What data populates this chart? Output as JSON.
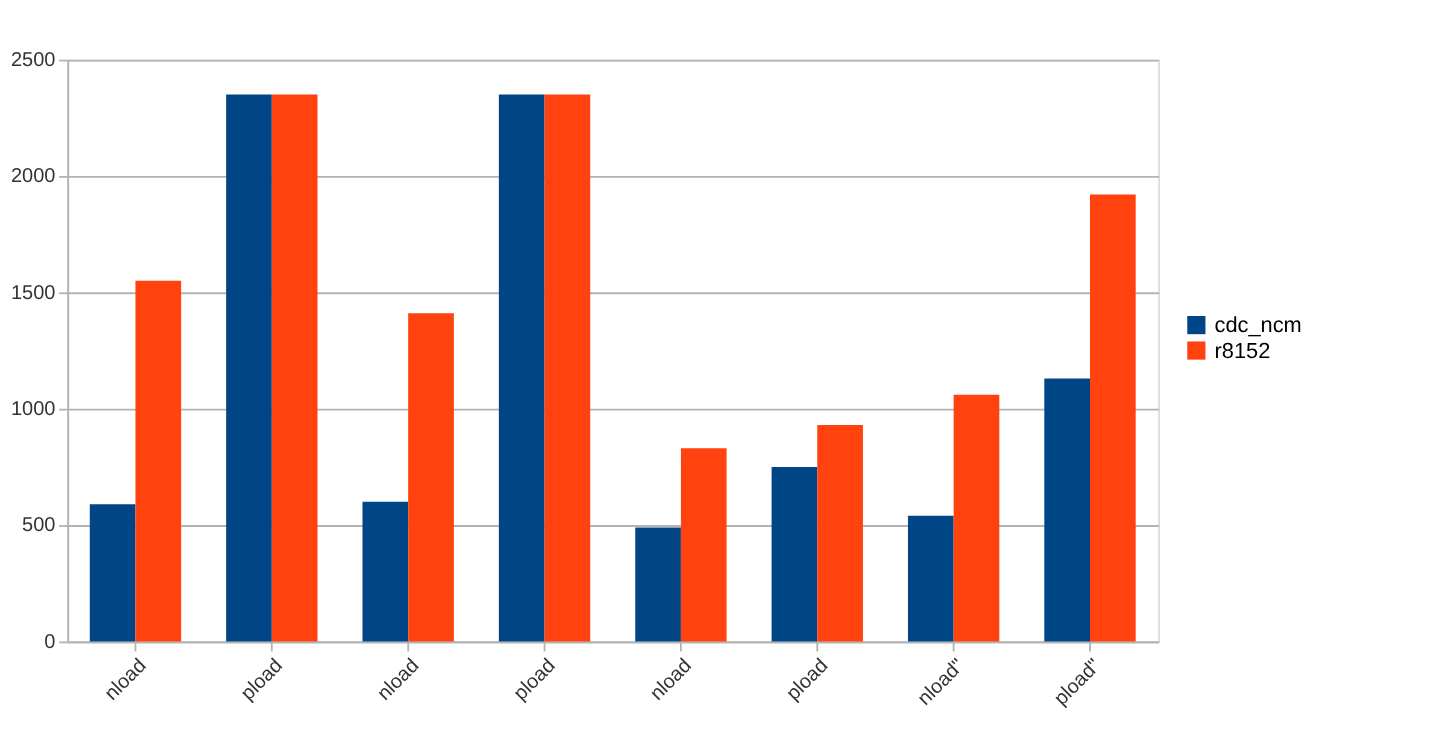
{
  "chart_data": {
    "type": "bar",
    "categories": [
      "nload",
      "pload",
      "nload",
      "pload",
      "nload",
      "pload",
      "nload\"",
      "pload\""
    ],
    "series": [
      {
        "name": "cdc_ncm",
        "color": "#004586",
        "values": [
          590,
          2350,
          600,
          2350,
          490,
          750,
          540,
          1130
        ]
      },
      {
        "name": "r8152",
        "color": "#ff420e",
        "values": [
          1550,
          2350,
          1410,
          2350,
          830,
          930,
          1060,
          1920
        ]
      }
    ],
    "ylim": [
      0,
      2500
    ],
    "yticks": [
      0,
      500,
      1000,
      1500,
      2000,
      2500
    ],
    "grid": "y",
    "legend": "right"
  }
}
